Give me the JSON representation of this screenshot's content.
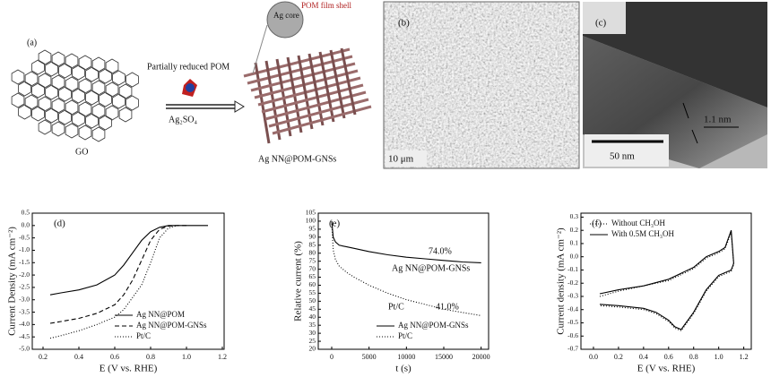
{
  "panels": {
    "a": {
      "label": "(a)",
      "reagent": "Partially reduced POM",
      "condition": "Ag₂SO₄",
      "start": "GO",
      "product": "Ag NN@POM-GNSs",
      "core": "Ag core",
      "shell": "POM film shell"
    },
    "b": {
      "label": "(b)",
      "scale": "10 μm"
    },
    "c": {
      "label": "(c)",
      "thickness": "1.1 nm",
      "scale": "50 nm"
    }
  },
  "chart_data": [
    {
      "type": "line",
      "label": "(d)",
      "xlabel": "E (V vs. RHE)",
      "ylabel": "Current Density (mA cm⁻²)",
      "xlim": [
        0.14,
        1.21
      ],
      "ylim": [
        -5.0,
        0.5
      ],
      "xticks": [
        0.2,
        0.4,
        0.6,
        0.8,
        {
          "value": 1,
          "label": "1.0"
        },
        1.2
      ],
      "yticks": [
        0.5,
        {
          "value": 0,
          "label": "0.0"
        },
        -0.5,
        {
          "value": -1,
          "label": "-1.0"
        },
        -1.5,
        {
          "value": -2,
          "label": "-2.0"
        },
        -2.5,
        {
          "value": -3,
          "label": "-3.0"
        },
        -3.5,
        {
          "value": -4,
          "label": "-4.0"
        },
        -4.5,
        {
          "value": -5,
          "label": "-5.0"
        }
      ],
      "legend": "lower right",
      "x": [
        0.24,
        0.3,
        0.4,
        0.5,
        0.6,
        0.65,
        0.7,
        0.75,
        0.8,
        0.85,
        0.9,
        0.95,
        1.0,
        1.12
      ],
      "series": [
        {
          "name": "Ag NN@POM",
          "color": "#000000",
          "dash": "solid",
          "values": [
            -2.8,
            -2.72,
            -2.6,
            -2.4,
            -2.0,
            -1.6,
            -1.1,
            -0.6,
            -0.25,
            -0.07,
            0,
            0,
            0,
            0
          ]
        },
        {
          "name": "Ag NN@POM-GNSs",
          "color": "#000000",
          "dash": "dashed",
          "values": [
            -3.95,
            -3.88,
            -3.75,
            -3.55,
            -3.2,
            -2.8,
            -2.2,
            -1.4,
            -0.6,
            -0.15,
            -0.02,
            0,
            0,
            null
          ]
        },
        {
          "name": "Pt/C",
          "color": "#000000",
          "dash": "dotted",
          "values": [
            -4.55,
            -4.45,
            -4.25,
            -4.0,
            -3.7,
            -3.4,
            -2.9,
            -2.4,
            -1.5,
            -0.5,
            -0.1,
            0,
            null,
            null
          ]
        }
      ]
    },
    {
      "type": "line",
      "label": "(e)",
      "xlabel": "t (s)",
      "ylabel": "Relative current (%)",
      "xlim": [
        -1800,
        21000
      ],
      "ylim": [
        20,
        105
      ],
      "xticks": [
        0,
        5000,
        10000,
        15000,
        20000
      ],
      "yticks": [
        20,
        25,
        30,
        35,
        40,
        45,
        50,
        55,
        60,
        65,
        70,
        75,
        80,
        85,
        90,
        95,
        100,
        105
      ],
      "legend": "lower right",
      "annotations": [
        "74.0%",
        "Ag NN@POM-GNSs",
        "Pt/C",
        "41.0%"
      ],
      "x": [
        0,
        200,
        500,
        1000,
        2000,
        3000,
        5000,
        7500,
        10000,
        12500,
        15000,
        17500,
        20000
      ],
      "series": [
        {
          "name": "Ag NN@POM-GNSs",
          "color": "#000000",
          "dash": "solid",
          "values": [
            100,
            90,
            87,
            85,
            84,
            83,
            81,
            79,
            77.5,
            76.5,
            75.5,
            74.5,
            74
          ]
        },
        {
          "name": "Pt/C",
          "color": "#000000",
          "dash": "dotted",
          "values": [
            100,
            82,
            76,
            72,
            68,
            65,
            60,
            55,
            51,
            48,
            45,
            43,
            41
          ]
        }
      ]
    },
    {
      "type": "line",
      "label": "(f)",
      "xlabel": "E (V vs. RHE)",
      "ylabel": "Current density (mA cm⁻²)",
      "xlim": [
        -0.1,
        1.26
      ],
      "ylim": [
        -0.7,
        0.33
      ],
      "xticks": [
        {
          "value": 0,
          "label": "0.0"
        },
        0.2,
        0.4,
        0.6,
        0.8,
        {
          "value": 1,
          "label": "1.0"
        },
        1.2
      ],
      "yticks": [
        0.3,
        0.2,
        0.1,
        {
          "value": 0,
          "label": "0.0"
        },
        -0.1,
        -0.2,
        -0.3,
        -0.4,
        -0.5,
        -0.6,
        -0.7
      ],
      "legend": "upper left",
      "x": [
        0.05,
        0.2,
        0.4,
        0.6,
        0.8,
        0.9,
        1.0,
        1.05,
        1.1,
        1.12,
        1.1,
        1.0,
        0.9,
        0.8,
        0.7,
        0.65,
        0.6,
        0.5,
        0.4,
        0.2,
        0.05
      ],
      "series": [
        {
          "name": "Without CH₃OH",
          "color": "#000000",
          "dash": "dotted",
          "values": [
            -0.3,
            -0.26,
            -0.22,
            -0.18,
            -0.09,
            -0.01,
            0.03,
            0.06,
            0.18,
            -0.06,
            -0.11,
            -0.15,
            -0.26,
            -0.43,
            -0.56,
            -0.54,
            -0.49,
            -0.43,
            -0.4,
            -0.38,
            -0.37
          ]
        },
        {
          "name": "With 0.5M CH₃OH",
          "color": "#000000",
          "dash": "solid",
          "values": [
            -0.28,
            -0.25,
            -0.22,
            -0.17,
            -0.08,
            0.0,
            0.04,
            0.07,
            0.2,
            -0.05,
            -0.1,
            -0.14,
            -0.25,
            -0.42,
            -0.55,
            -0.53,
            -0.48,
            -0.42,
            -0.39,
            -0.37,
            -0.36
          ]
        }
      ]
    }
  ]
}
